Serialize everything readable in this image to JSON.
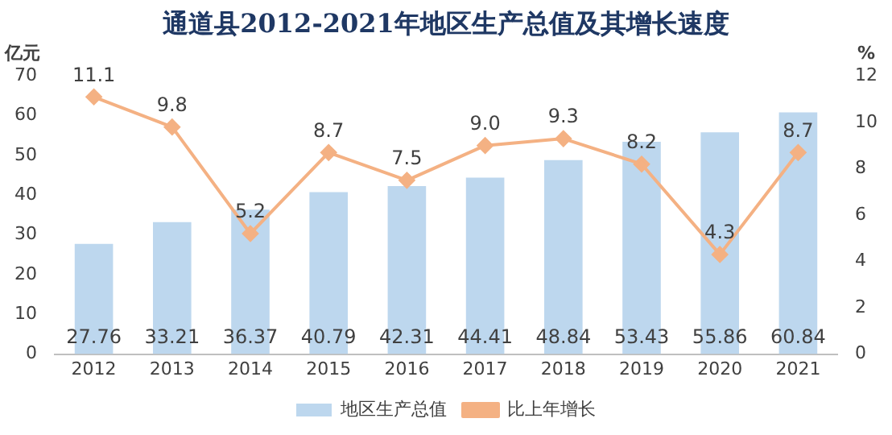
{
  "chart_data": {
    "type": "bar",
    "title": "通道县2012-2021年地区生产总值及其增长速度",
    "ylabel": "亿元",
    "y2label": "%",
    "categories": [
      "2012",
      "2013",
      "2014",
      "2015",
      "2016",
      "2017",
      "2018",
      "2019",
      "2020",
      "2021"
    ],
    "series": [
      {
        "name": "地区生产总值",
        "color": "#bdd7ee",
        "values": [
          27.76,
          33.21,
          36.37,
          40.79,
          42.31,
          44.41,
          48.84,
          53.43,
          55.86,
          60.84
        ],
        "value_labels": [
          "27.76",
          "33.21",
          "36.37",
          "40.79",
          "42.31",
          "44.41",
          "48.84",
          "53.43",
          "55.86",
          "60.84"
        ]
      },
      {
        "name": "比上年增长",
        "type": "line",
        "axis": "y2",
        "color": "#f4b183",
        "values": [
          11.1,
          9.8,
          5.2,
          8.7,
          7.5,
          9.0,
          9.3,
          8.2,
          4.3,
          8.7
        ],
        "value_labels": [
          "11.1",
          "9.8",
          "5.2",
          "8.7",
          "7.5",
          "9.0",
          "9.3",
          "8.2",
          "4.3",
          "8.7"
        ]
      }
    ],
    "ylim": [
      0,
      70
    ],
    "yticks": [
      0,
      10,
      20,
      30,
      40,
      50,
      60,
      70
    ],
    "y2lim": [
      0,
      12
    ],
    "y2ticks": [
      0,
      2,
      4,
      6,
      8,
      10,
      12
    ],
    "grid": false,
    "legend": "bottom",
    "marker": "diamond",
    "line_style": "solid"
  }
}
